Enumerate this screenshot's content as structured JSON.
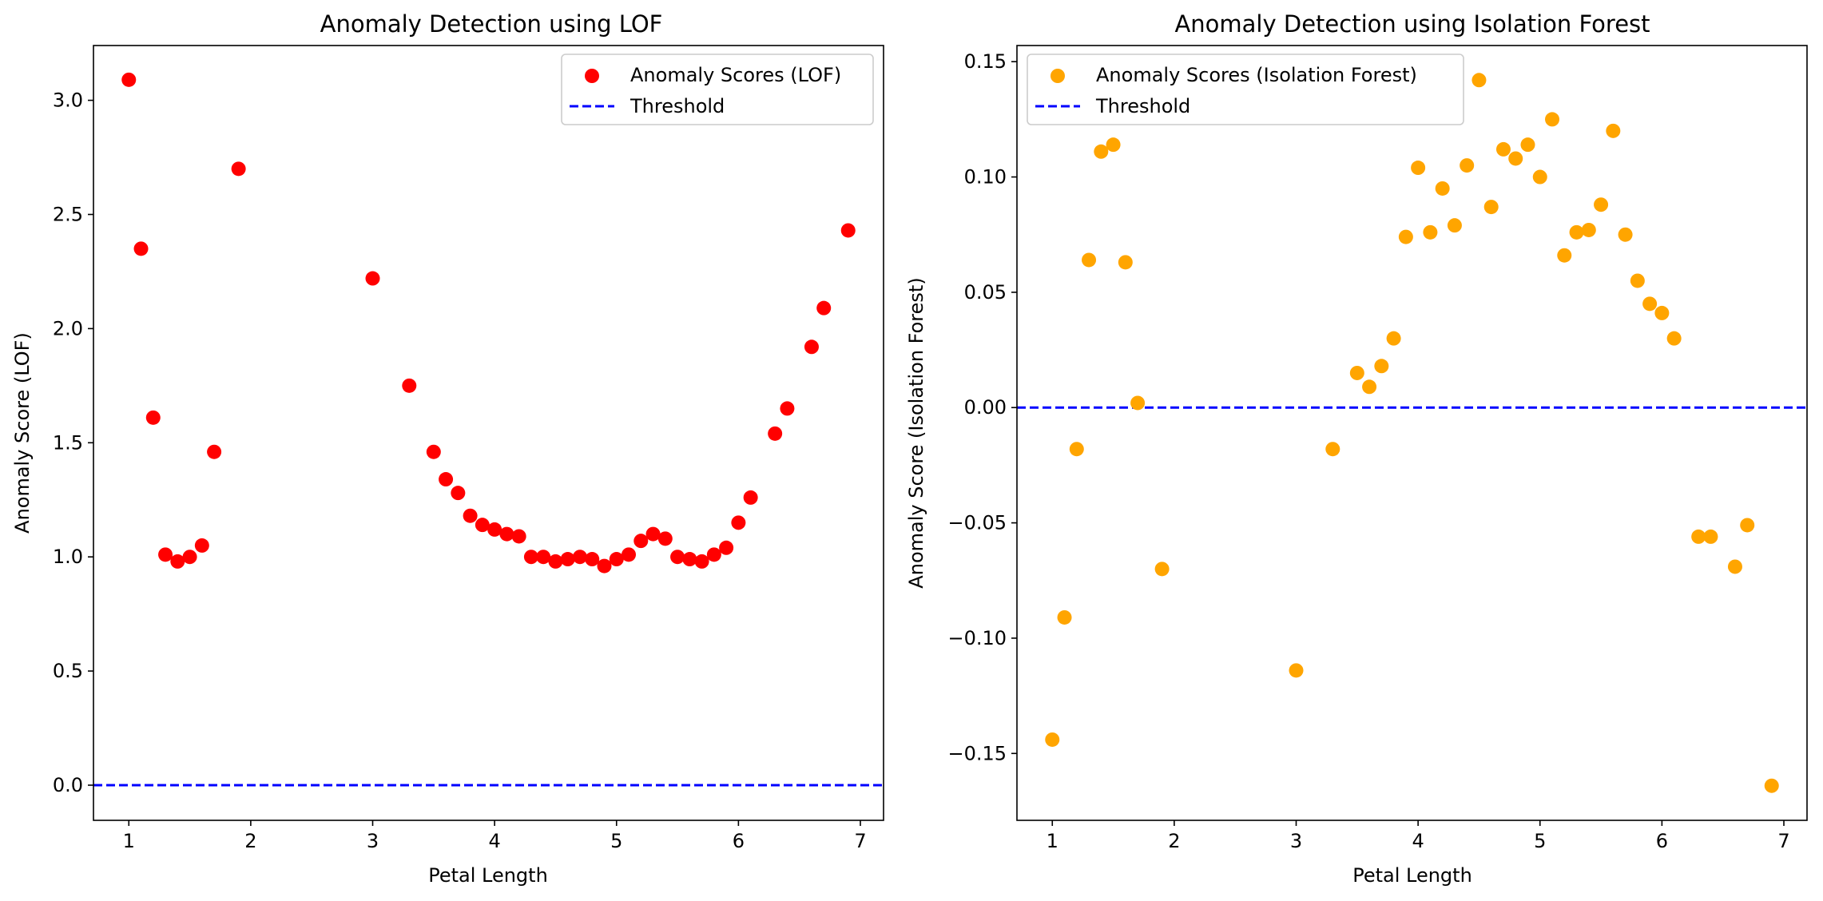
{
  "chart_data": [
    {
      "type": "scatter",
      "title": "Anomaly Detection using LOF",
      "xlabel": "Petal Length",
      "ylabel": "Anomaly Score (LOF)",
      "xlim": [
        0.71,
        7.19
      ],
      "ylim": [
        -0.154,
        3.24
      ],
      "xticks": [
        "1",
        "2",
        "3",
        "4",
        "5",
        "6",
        "7"
      ],
      "yticks": [
        "0.0",
        "0.5",
        "1.0",
        "1.5",
        "2.0",
        "2.5",
        "3.0"
      ],
      "grid": false,
      "legend": {
        "placement": "top-right",
        "entries": [
          "Anomaly Scores (LOF)",
          "Threshold"
        ]
      },
      "threshold": 0.0,
      "series": [
        {
          "name": "Anomaly Scores (LOF)",
          "color": "#ff0000",
          "x": [
            1.0,
            1.1,
            1.2,
            1.3,
            1.4,
            1.5,
            1.6,
            1.7,
            1.9,
            3.0,
            3.3,
            3.5,
            3.6,
            3.7,
            3.8,
            3.9,
            4.0,
            4.1,
            4.2,
            4.3,
            4.4,
            4.5,
            4.6,
            4.7,
            4.8,
            4.9,
            5.0,
            5.1,
            5.2,
            5.3,
            5.4,
            5.5,
            5.6,
            5.7,
            5.8,
            5.9,
            6.0,
            6.1,
            6.3,
            6.4,
            6.6,
            6.7,
            6.9
          ],
          "y": [
            3.09,
            2.35,
            1.61,
            1.01,
            0.98,
            1.0,
            1.05,
            1.46,
            2.7,
            2.22,
            1.75,
            1.46,
            1.34,
            1.28,
            1.18,
            1.14,
            1.12,
            1.1,
            1.09,
            1.0,
            1.0,
            0.98,
            0.99,
            1.0,
            0.99,
            0.96,
            0.99,
            1.01,
            1.07,
            1.1,
            1.08,
            1.0,
            0.99,
            0.98,
            1.01,
            1.04,
            1.15,
            1.26,
            1.54,
            1.65,
            1.92,
            2.09,
            2.43
          ]
        }
      ],
      "threshold_color": "#0000ff"
    },
    {
      "type": "scatter",
      "title": "Anomaly Detection using Isolation Forest",
      "xlabel": "Petal Length",
      "ylabel": "Anomaly Score (Isolation Forest)",
      "xlim": [
        0.71,
        7.19
      ],
      "ylim": [
        -0.179,
        0.157
      ],
      "xticks": [
        "1",
        "2",
        "3",
        "4",
        "5",
        "6",
        "7"
      ],
      "yticks": [
        "−0.15",
        "−0.10",
        "−0.05",
        "0.00",
        "0.05",
        "0.10",
        "0.15"
      ],
      "grid": false,
      "legend": {
        "placement": "top-left",
        "entries": [
          "Anomaly Scores (Isolation Forest)",
          "Threshold"
        ]
      },
      "threshold": 0.0,
      "series": [
        {
          "name": "Anomaly Scores (Isolation Forest)",
          "color": "#ffa500",
          "x": [
            1.0,
            1.1,
            1.2,
            1.3,
            1.4,
            1.5,
            1.6,
            1.7,
            1.9,
            3.0,
            3.3,
            3.5,
            3.6,
            3.7,
            3.8,
            3.9,
            4.0,
            4.1,
            4.2,
            4.3,
            4.4,
            4.5,
            4.6,
            4.7,
            4.8,
            4.9,
            5.0,
            5.1,
            5.2,
            5.3,
            5.4,
            5.5,
            5.6,
            5.7,
            5.8,
            5.9,
            6.0,
            6.1,
            6.3,
            6.4,
            6.6,
            6.7,
            6.9
          ],
          "y": [
            -0.144,
            -0.091,
            -0.018,
            0.064,
            0.111,
            0.114,
            0.063,
            0.002,
            -0.07,
            -0.114,
            -0.018,
            0.015,
            0.009,
            0.018,
            0.03,
            0.074,
            0.104,
            0.076,
            0.095,
            0.079,
            0.105,
            0.142,
            0.087,
            0.112,
            0.108,
            0.114,
            0.1,
            0.125,
            0.066,
            0.076,
            0.077,
            0.088,
            0.12,
            0.075,
            0.055,
            0.045,
            0.041,
            0.03,
            -0.056,
            -0.056,
            -0.069,
            -0.051,
            -0.164
          ]
        }
      ],
      "threshold_color": "#0000ff"
    }
  ]
}
